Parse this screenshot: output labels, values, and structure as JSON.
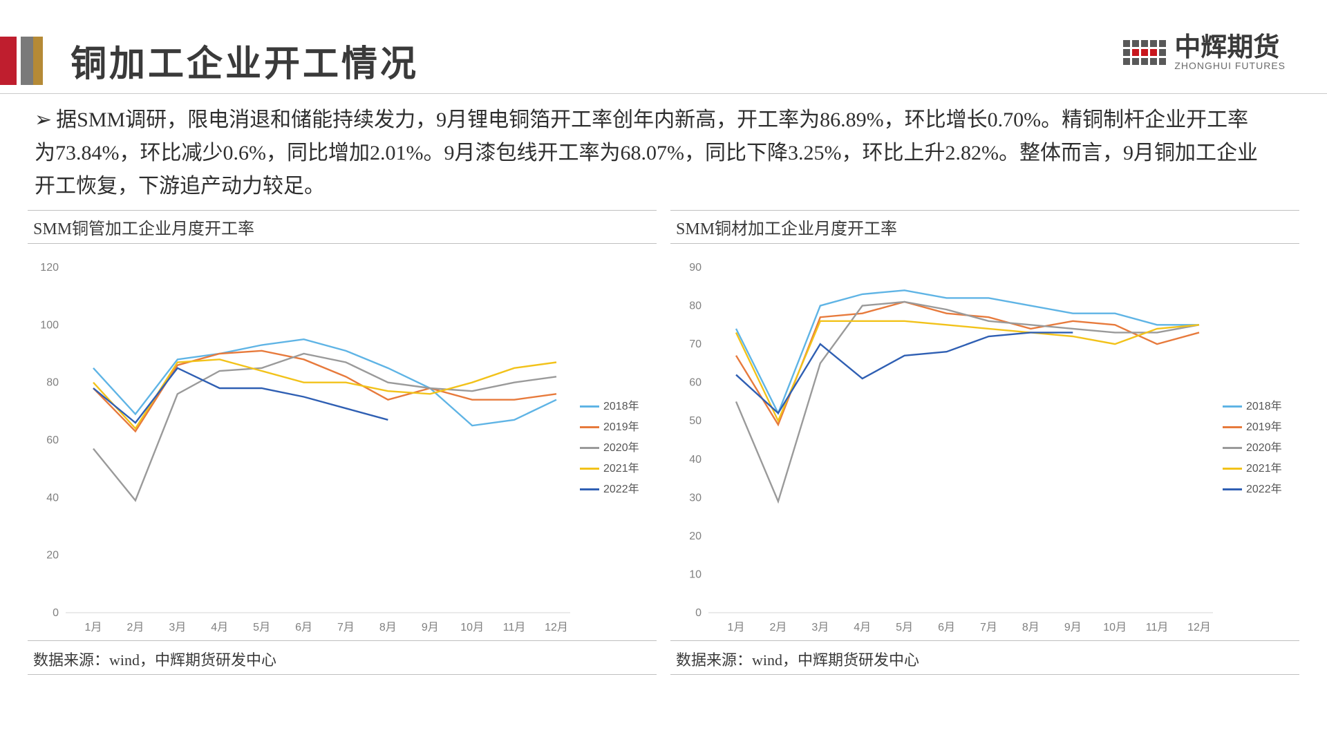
{
  "header": {
    "title": "铜加工企业开工情况",
    "bar_colors": [
      "#bf1e2e",
      "#7a7a7a",
      "#b58a36"
    ],
    "logo_cn": "中辉期货",
    "logo_en": "ZHONGHUI FUTURES"
  },
  "summary": "据SMM调研，限电消退和储能持续发力，9月锂电铜箔开工率创年内新高，开工率为86.89%，环比增长0.70%。精铜制杆企业开工率为73.84%，环比减少0.6%，同比增加2.01%。9月漆包线开工率为68.07%，同比下降3.25%，环比上升2.82%。整体而言，9月铜加工企业开工恢复，下游追产动力较足。",
  "months": [
    "1月",
    "2月",
    "3月",
    "4月",
    "5月",
    "6月",
    "7月",
    "8月",
    "9月",
    "10月",
    "11月",
    "12月"
  ],
  "legend_labels": [
    "2018年",
    "2019年",
    "2020年",
    "2021年",
    "2022年"
  ],
  "series_colors": {
    "2018年": "#5fb4e5",
    "2019年": "#e77a3c",
    "2020年": "#9a9a9a",
    "2021年": "#f2c21a",
    "2022年": "#2f5fb3"
  },
  "chart_left": {
    "title": "SMM铜管加工企业月度开工率",
    "ylim": [
      0,
      120
    ],
    "ytick_step": 20,
    "line_width": 2.4,
    "grid_color": "#d4d4d4",
    "axis_label_color": "#808080",
    "series": {
      "2018年": [
        85,
        69,
        88,
        90,
        93,
        95,
        91,
        85,
        78,
        65,
        67,
        74
      ],
      "2019年": [
        78,
        63,
        86,
        90,
        91,
        88,
        82,
        74,
        78,
        74,
        74,
        76
      ],
      "2020年": [
        57,
        39,
        76,
        84,
        85,
        90,
        87,
        80,
        78,
        77,
        80,
        82
      ],
      "2021年": [
        80,
        64,
        87,
        88,
        84,
        80,
        80,
        77,
        76,
        80,
        85,
        87
      ],
      "2022年": [
        78,
        66,
        85,
        78,
        78,
        75,
        71,
        67,
        null,
        null,
        null,
        null
      ]
    },
    "source": "数据来源：wind，中辉期货研发中心"
  },
  "chart_right": {
    "title": "SMM铜材加工企业月度开工率",
    "ylim": [
      0,
      90
    ],
    "ytick_step": 10,
    "line_width": 2.4,
    "grid_color": "#d4d4d4",
    "axis_label_color": "#808080",
    "series": {
      "2018年": [
        74,
        52,
        80,
        83,
        84,
        82,
        82,
        80,
        78,
        78,
        75,
        75
      ],
      "2019年": [
        67,
        49,
        77,
        78,
        81,
        78,
        77,
        74,
        76,
        75,
        70,
        73
      ],
      "2020年": [
        55,
        29,
        65,
        80,
        81,
        79,
        76,
        75,
        74,
        73,
        73,
        75
      ],
      "2021年": [
        73,
        50,
        76,
        76,
        76,
        75,
        74,
        73,
        72,
        70,
        74,
        75
      ],
      "2022年": [
        62,
        52,
        70,
        61,
        67,
        68,
        72,
        73,
        73,
        null,
        null,
        null
      ]
    },
    "source": "数据来源：wind，中辉期货研发中心"
  }
}
